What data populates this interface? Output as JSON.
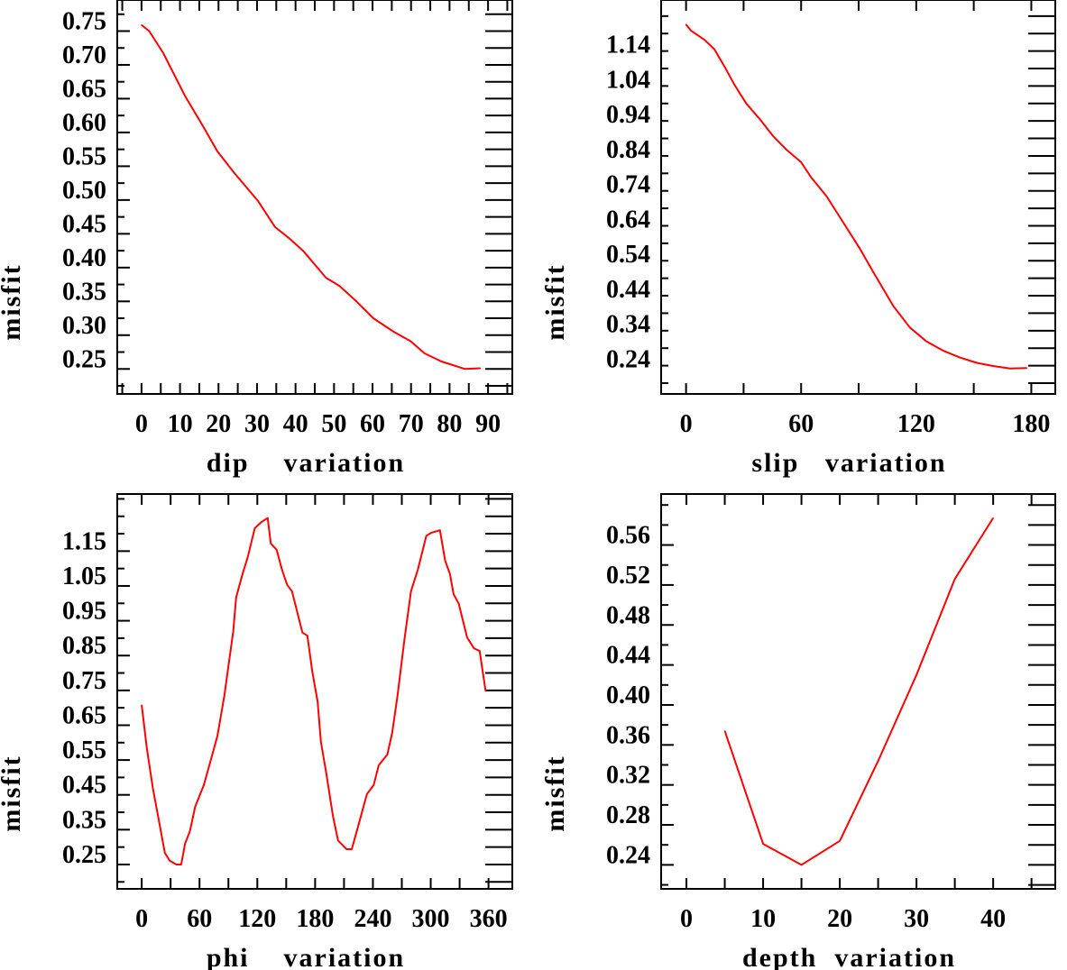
{
  "chart_data": [
    {
      "type": "line",
      "title": "",
      "xlabel": "dip    variation",
      "ylabel": "misfit",
      "xlim": [
        -6.3,
        96.3
      ],
      "ylim": [
        0.213,
        0.796
      ],
      "xtick_labels": [
        "0",
        "10",
        "20",
        "30",
        "40",
        "50",
        "60",
        "70",
        "80",
        "90"
      ],
      "xtick_values": [
        0,
        10,
        20,
        30,
        40,
        50,
        60,
        70,
        80,
        90
      ],
      "xminor_step": 5,
      "ytick_labels": [
        "0.25",
        "0.30",
        "0.35",
        "0.40",
        "0.45",
        "0.50",
        "0.55",
        "0.60",
        "0.65",
        "0.70",
        "0.75"
      ],
      "ytick_values": [
        0.25,
        0.3,
        0.35,
        0.4,
        0.45,
        0.5,
        0.55,
        0.6,
        0.65,
        0.7,
        0.75
      ],
      "yminor_step": 0.025,
      "grid": false,
      "color": "#ff0000",
      "x": [
        0,
        2,
        5.6,
        11.3,
        16.1,
        19.7,
        24.1,
        30.2,
        34.7,
        38.2,
        42.1,
        47.9,
        51.4,
        55.8,
        60.2,
        65.5,
        69.9,
        73.5,
        77.9,
        84,
        88
      ],
      "y": [
        0.759,
        0.75,
        0.718,
        0.654,
        0.608,
        0.572,
        0.54,
        0.499,
        0.46,
        0.444,
        0.424,
        0.385,
        0.373,
        0.35,
        0.325,
        0.305,
        0.291,
        0.273,
        0.261,
        0.25,
        0.251
      ]
    },
    {
      "type": "line",
      "title": "",
      "xlabel": "slip   variation",
      "ylabel": "misfit",
      "xlim": [
        -13,
        192.5
      ],
      "ylim": [
        0.169,
        1.296
      ],
      "xtick_labels": [
        "0",
        "60",
        "120",
        "180"
      ],
      "xtick_values": [
        0,
        60,
        120,
        180
      ],
      "xminor_step": 30,
      "ytick_labels": [
        "0.24",
        "0.34",
        "0.44",
        "0.54",
        "0.64",
        "0.74",
        "0.84",
        "0.94",
        "1.04",
        "1.14"
      ],
      "ytick_values": [
        0.24,
        0.34,
        0.44,
        0.54,
        0.64,
        0.74,
        0.84,
        0.94,
        1.04,
        1.14
      ],
      "yminor_step": 0.05,
      "grid": false,
      "color": "#ff0000",
      "x": [
        0,
        2.6,
        9.6,
        14.8,
        20,
        25.3,
        31.4,
        38.3,
        45.3,
        52.3,
        60,
        65.3,
        73.2,
        81.9,
        90.6,
        97.6,
        108,
        116.7,
        125.4,
        134,
        142.9,
        151.6,
        160,
        169,
        177.7
      ],
      "y": [
        1.226,
        1.208,
        1.182,
        1.155,
        1.106,
        1.053,
        1.0,
        0.956,
        0.907,
        0.868,
        0.832,
        0.788,
        0.735,
        0.66,
        0.585,
        0.518,
        0.421,
        0.359,
        0.319,
        0.293,
        0.273,
        0.258,
        0.249,
        0.242,
        0.243
      ]
    },
    {
      "type": "line",
      "title": "",
      "xlabel": "phi    variation",
      "ylabel": "misfit",
      "xlim": [
        -25.4,
        384.7
      ],
      "ylim": [
        0.18,
        1.314
      ],
      "xtick_labels": [
        "0",
        "60",
        "120",
        "180",
        "240",
        "300",
        "360"
      ],
      "xtick_values": [
        0,
        60,
        120,
        180,
        240,
        300,
        360
      ],
      "xminor_step": 30,
      "ytick_labels": [
        "0.25",
        "0.35",
        "0.45",
        "0.55",
        "0.65",
        "0.75",
        "0.85",
        "0.95",
        "1.05",
        "1.15"
      ],
      "ytick_values": [
        0.25,
        0.35,
        0.45,
        0.55,
        0.65,
        0.75,
        0.85,
        0.95,
        1.05,
        1.15
      ],
      "yminor_step": 0.05,
      "grid": false,
      "color": "#ff0000",
      "x": [
        0,
        5.3,
        11.6,
        18.7,
        24,
        29,
        36,
        41,
        45,
        50,
        55.5,
        64.5,
        71.6,
        78.6,
        85.7,
        95,
        98,
        105,
        110,
        117.4,
        124.5,
        130.8,
        134,
        140,
        145.6,
        151,
        156,
        166.8,
        172,
        177,
        182.6,
        186,
        191.5,
        198.5,
        203.8,
        212.6,
        218,
        225,
        233.8,
        240.8,
        246,
        255,
        260,
        265.5,
        272.6,
        279.6,
        286.7,
        295.5,
        300.8,
        309.6,
        314.9,
        320,
        323.7,
        329,
        337.8,
        344.8,
        350.8,
        357
      ],
      "y": [
        0.708,
        0.584,
        0.469,
        0.363,
        0.283,
        0.261,
        0.25,
        0.25,
        0.31,
        0.345,
        0.416,
        0.478,
        0.549,
        0.62,
        0.734,
        0.92,
        1.017,
        1.088,
        1.132,
        1.216,
        1.234,
        1.245,
        1.172,
        1.154,
        1.097,
        1.053,
        1.035,
        0.916,
        0.907,
        0.805,
        0.717,
        0.602,
        0.513,
        0.39,
        0.319,
        0.294,
        0.294,
        0.363,
        0.452,
        0.478,
        0.535,
        0.566,
        0.628,
        0.734,
        0.894,
        1.035,
        1.097,
        1.194,
        1.203,
        1.21,
        1.123,
        1.084,
        1.026,
        1.0,
        0.902,
        0.871,
        0.863,
        0.748
      ]
    },
    {
      "type": "line",
      "title": "",
      "xlabel": "depth  variation",
      "ylabel": "misfit",
      "xlim": [
        -3.3,
        48.1
      ],
      "ylim": [
        0.216,
        0.611
      ],
      "xtick_labels": [
        "0",
        "10",
        "20",
        "30",
        "40"
      ],
      "xtick_values": [
        0,
        10,
        20,
        30,
        40
      ],
      "xminor_step": 5,
      "ytick_labels": [
        "0.24",
        "0.28",
        "0.32",
        "0.36",
        "0.40",
        "0.44",
        "0.48",
        "0.52",
        "0.56"
      ],
      "ytick_values": [
        0.24,
        0.28,
        0.32,
        0.36,
        0.4,
        0.44,
        0.48,
        0.52,
        0.56
      ],
      "yminor_step": 0.02,
      "grid": false,
      "color": "#ff0000",
      "x": [
        5,
        10,
        15,
        20,
        25,
        30,
        35,
        40
      ],
      "y": [
        0.374,
        0.261,
        0.24,
        0.264,
        0.344,
        0.43,
        0.526,
        0.587
      ]
    }
  ]
}
